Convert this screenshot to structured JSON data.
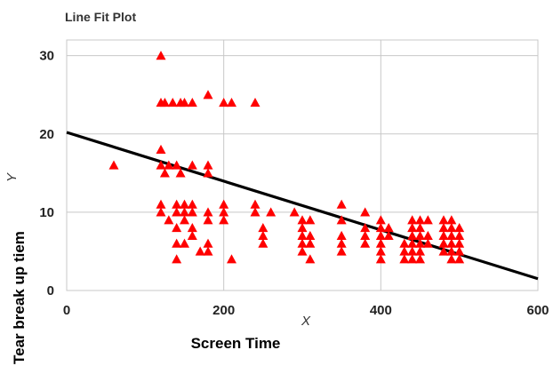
{
  "chart_data": {
    "type": "scatter",
    "title": "Line Fit Plot",
    "x_symbol": "X",
    "y_symbol": "Y",
    "xlabel": "Screen Time",
    "ylabel": "Tear break up tiem",
    "xlim": [
      0,
      600
    ],
    "ylim": [
      0,
      32
    ],
    "x_ticks": [
      0,
      200,
      400,
      600
    ],
    "y_ticks": [
      0,
      10,
      20,
      30
    ],
    "grid": true,
    "colors": {
      "points": "#ff0000",
      "fit_line": "#000000",
      "grid": "#c8c8c8"
    },
    "fit_line": {
      "x": [
        0,
        600
      ],
      "y": [
        20.2,
        1.5
      ]
    },
    "points": [
      {
        "x": 60,
        "y": 16
      },
      {
        "x": 120,
        "y": 30
      },
      {
        "x": 120,
        "y": 24
      },
      {
        "x": 125,
        "y": 24
      },
      {
        "x": 135,
        "y": 24
      },
      {
        "x": 145,
        "y": 24
      },
      {
        "x": 150,
        "y": 24
      },
      {
        "x": 160,
        "y": 24
      },
      {
        "x": 180,
        "y": 25
      },
      {
        "x": 200,
        "y": 24
      },
      {
        "x": 210,
        "y": 24
      },
      {
        "x": 240,
        "y": 24
      },
      {
        "x": 120,
        "y": 18
      },
      {
        "x": 120,
        "y": 16
      },
      {
        "x": 125,
        "y": 15
      },
      {
        "x": 130,
        "y": 16
      },
      {
        "x": 140,
        "y": 16
      },
      {
        "x": 145,
        "y": 15
      },
      {
        "x": 160,
        "y": 16
      },
      {
        "x": 180,
        "y": 16
      },
      {
        "x": 180,
        "y": 15
      },
      {
        "x": 120,
        "y": 11
      },
      {
        "x": 120,
        "y": 10
      },
      {
        "x": 130,
        "y": 9
      },
      {
        "x": 140,
        "y": 11
      },
      {
        "x": 140,
        "y": 10
      },
      {
        "x": 140,
        "y": 8
      },
      {
        "x": 140,
        "y": 6
      },
      {
        "x": 140,
        "y": 4
      },
      {
        "x": 150,
        "y": 11
      },
      {
        "x": 150,
        "y": 10
      },
      {
        "x": 150,
        "y": 9
      },
      {
        "x": 150,
        "y": 6
      },
      {
        "x": 160,
        "y": 11
      },
      {
        "x": 160,
        "y": 10
      },
      {
        "x": 160,
        "y": 8
      },
      {
        "x": 160,
        "y": 7
      },
      {
        "x": 170,
        "y": 5
      },
      {
        "x": 180,
        "y": 10
      },
      {
        "x": 180,
        "y": 9
      },
      {
        "x": 180,
        "y": 6
      },
      {
        "x": 180,
        "y": 5
      },
      {
        "x": 200,
        "y": 11
      },
      {
        "x": 200,
        "y": 10
      },
      {
        "x": 200,
        "y": 9
      },
      {
        "x": 210,
        "y": 4
      },
      {
        "x": 240,
        "y": 11
      },
      {
        "x": 240,
        "y": 10
      },
      {
        "x": 250,
        "y": 8
      },
      {
        "x": 250,
        "y": 7
      },
      {
        "x": 250,
        "y": 6
      },
      {
        "x": 260,
        "y": 10
      },
      {
        "x": 290,
        "y": 10
      },
      {
        "x": 300,
        "y": 9
      },
      {
        "x": 300,
        "y": 8
      },
      {
        "x": 300,
        "y": 7
      },
      {
        "x": 300,
        "y": 6
      },
      {
        "x": 300,
        "y": 5
      },
      {
        "x": 310,
        "y": 9
      },
      {
        "x": 310,
        "y": 7
      },
      {
        "x": 310,
        "y": 6
      },
      {
        "x": 310,
        "y": 4
      },
      {
        "x": 350,
        "y": 11
      },
      {
        "x": 350,
        "y": 9
      },
      {
        "x": 350,
        "y": 7
      },
      {
        "x": 350,
        "y": 6
      },
      {
        "x": 350,
        "y": 5
      },
      {
        "x": 380,
        "y": 10
      },
      {
        "x": 380,
        "y": 8
      },
      {
        "x": 380,
        "y": 7
      },
      {
        "x": 380,
        "y": 6
      },
      {
        "x": 400,
        "y": 9
      },
      {
        "x": 400,
        "y": 8
      },
      {
        "x": 400,
        "y": 7
      },
      {
        "x": 400,
        "y": 6
      },
      {
        "x": 400,
        "y": 5
      },
      {
        "x": 400,
        "y": 4
      },
      {
        "x": 410,
        "y": 8
      },
      {
        "x": 410,
        "y": 7
      },
      {
        "x": 430,
        "y": 6
      },
      {
        "x": 430,
        "y": 5
      },
      {
        "x": 430,
        "y": 4
      },
      {
        "x": 440,
        "y": 9
      },
      {
        "x": 440,
        "y": 8
      },
      {
        "x": 440,
        "y": 7
      },
      {
        "x": 440,
        "y": 6
      },
      {
        "x": 440,
        "y": 5
      },
      {
        "x": 440,
        "y": 4
      },
      {
        "x": 450,
        "y": 9
      },
      {
        "x": 450,
        "y": 8
      },
      {
        "x": 450,
        "y": 7
      },
      {
        "x": 450,
        "y": 6
      },
      {
        "x": 450,
        "y": 5
      },
      {
        "x": 450,
        "y": 4
      },
      {
        "x": 460,
        "y": 9
      },
      {
        "x": 460,
        "y": 7
      },
      {
        "x": 460,
        "y": 6
      },
      {
        "x": 480,
        "y": 9
      },
      {
        "x": 480,
        "y": 8
      },
      {
        "x": 480,
        "y": 7
      },
      {
        "x": 480,
        "y": 6
      },
      {
        "x": 480,
        "y": 5
      },
      {
        "x": 490,
        "y": 9
      },
      {
        "x": 490,
        "y": 8
      },
      {
        "x": 490,
        "y": 7
      },
      {
        "x": 490,
        "y": 6
      },
      {
        "x": 490,
        "y": 5
      },
      {
        "x": 490,
        "y": 4
      },
      {
        "x": 500,
        "y": 8
      },
      {
        "x": 500,
        "y": 7
      },
      {
        "x": 500,
        "y": 6
      },
      {
        "x": 500,
        "y": 5
      },
      {
        "x": 500,
        "y": 4
      }
    ]
  }
}
